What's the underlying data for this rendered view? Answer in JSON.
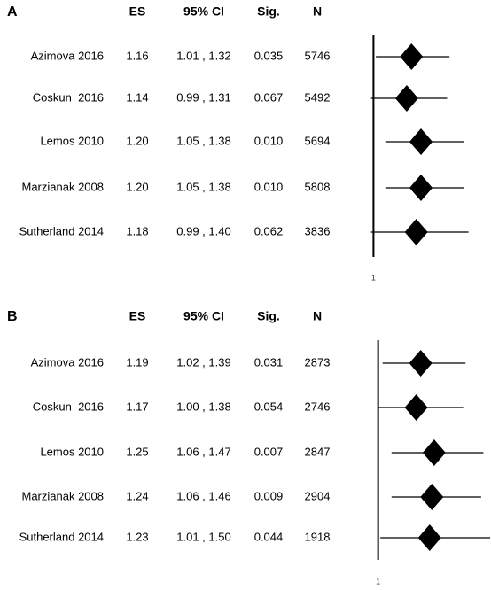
{
  "chart_data": [
    {
      "type": "forest",
      "panel": "A",
      "columns": [
        "ES",
        "95% CI",
        "Sig.",
        "N"
      ],
      "categories": [
        "Azimova 2016",
        "Coskun  2016",
        "Lemos 2010",
        "Marzianak 2008",
        "Sutherland 2014"
      ],
      "values": [
        1.16,
        1.14,
        1.2,
        1.2,
        1.18
      ],
      "value_labels": [
        "1.16",
        "1.14",
        "1.20",
        "1.20",
        "1.18"
      ],
      "ci_low": [
        1.01,
        0.99,
        1.05,
        1.05,
        0.99
      ],
      "ci_high": [
        1.32,
        1.31,
        1.38,
        1.38,
        1.4
      ],
      "ci_labels": [
        "1.01 , 1.32",
        "0.99 , 1.31",
        "1.05 , 1.38",
        "1.05 , 1.38",
        "0.99 , 1.40"
      ],
      "sig": [
        "0.035",
        "0.067",
        "0.010",
        "0.010",
        "0.062"
      ],
      "n": [
        5746,
        5492,
        5694,
        5808,
        3836
      ],
      "xlim": [
        0.95,
        1.45
      ],
      "xticks": [
        1
      ],
      "color": "#000000"
    },
    {
      "type": "forest",
      "panel": "B",
      "columns": [
        "ES",
        "95% CI",
        "Sig.",
        "N"
      ],
      "categories": [
        "Azimova 2016",
        "Coskun  2016",
        "Lemos 2010",
        "Marzianak 2008",
        "Sutherland 2014"
      ],
      "values": [
        1.19,
        1.17,
        1.25,
        1.24,
        1.23
      ],
      "value_labels": [
        "1.19",
        "1.17",
        "1.25",
        "1.24",
        "1.23"
      ],
      "ci_low": [
        1.02,
        1.0,
        1.06,
        1.06,
        1.01
      ],
      "ci_high": [
        1.39,
        1.38,
        1.47,
        1.46,
        1.5
      ],
      "ci_labels": [
        "1.02 , 1.39",
        "1.00 , 1.38",
        "1.06 , 1.47",
        "1.06 , 1.46",
        "1.01 , 1.50"
      ],
      "sig": [
        "0.031",
        "0.054",
        "0.007",
        "0.009",
        "0.044"
      ],
      "n": [
        2873,
        2746,
        2847,
        2904,
        1918
      ],
      "xlim": [
        0.95,
        1.5
      ],
      "xticks": [
        1
      ],
      "color": "#000000"
    }
  ]
}
